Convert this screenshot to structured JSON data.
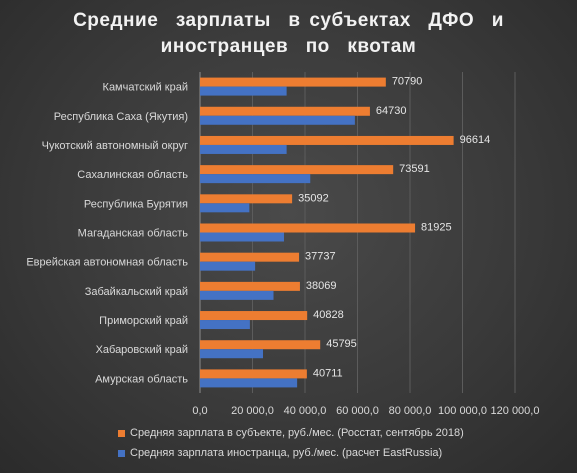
{
  "colors": {
    "series_1": "#ed7d31",
    "series_2": "#4472c4"
  },
  "chart_data": {
    "type": "bar",
    "orientation": "horizontal",
    "title_lines": [
      "Средние  зарплаты  в субъектах  ДФО  и",
      "иностранцев  по  квотам"
    ],
    "categories": [
      "Камчатский край",
      "Республика Саха (Якутия)",
      "Чукотский автономный округ",
      "Сахалинская область",
      "Республика Бурятия",
      "Магаданская область",
      "Еврейская автономная область",
      "Забайкальский край",
      "Приморский край",
      "Хабаровский край",
      "Амурская область"
    ],
    "series": [
      {
        "name": "Средняя зарплата в субъекте, руб./мес. (Росстат, сентябрь 2018)",
        "values": [
          70790,
          64730,
          96614,
          73591,
          35092,
          81925,
          37737,
          38069,
          40828,
          45795,
          40711
        ],
        "value_labels": [
          "70790",
          "64730",
          "96614",
          "73591",
          "35092",
          "81925",
          "37737",
          "38069",
          "40828",
          "45795",
          "40711"
        ]
      },
      {
        "name": "Средняя зарплата иностранца, руб./мес. (расчет EastRussia)",
        "values": [
          33000,
          59000,
          33000,
          42000,
          18800,
          32000,
          21000,
          28000,
          19000,
          24000,
          37000
        ]
      }
    ],
    "x_ticks": [
      "0,0",
      "20 000,0",
      "40 000,0",
      "60 000,0",
      "80 000,0",
      "100 000,0",
      "120 000,0"
    ],
    "xlim": [
      0,
      120000
    ],
    "grid": true,
    "legend_position": "bottom"
  }
}
